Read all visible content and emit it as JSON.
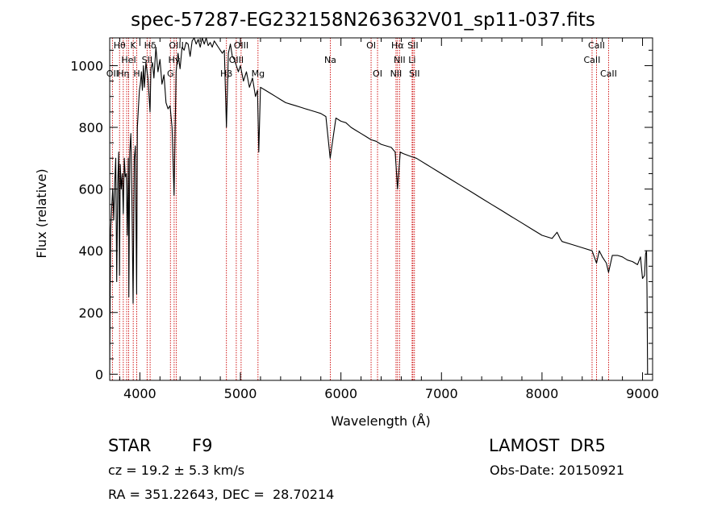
{
  "figure": {
    "title": "spec-57287-EG232158N263632V01_sp11-037.fits",
    "object_class": "STAR",
    "subclass": "F9",
    "survey": "LAMOST  DR5",
    "redshift_text": "cz = 19.2 ± 5.3 km/s",
    "obs_date_text": "Obs-Date: 20150921",
    "coords_text": "RA = 351.22643, DEC =  28.70214"
  },
  "colors": {
    "spectrum": "#000000",
    "line_markers": "#cc0000",
    "axes": "#000000"
  },
  "chart_data": {
    "type": "line",
    "title": "spec-57287-EG232158N263632V01_sp11-037.fits",
    "xlabel": "Wavelength (Å)",
    "ylabel": "Flux (relative)",
    "xlim": [
      3700,
      9100
    ],
    "ylim": [
      -20,
      1090
    ],
    "xticks": [
      4000,
      5000,
      6000,
      7000,
      8000,
      9000
    ],
    "yticks": [
      0,
      200,
      400,
      600,
      800,
      1000
    ],
    "grid": false,
    "series": [
      {
        "x": [
          3700,
          3705,
          3710,
          3720,
          3730,
          3740,
          3750,
          3760,
          3770,
          3780,
          3790,
          3798,
          3805,
          3815,
          3825,
          3835,
          3845,
          3855,
          3865,
          3875,
          3885,
          3890,
          3900,
          3910,
          3920,
          3933,
          3945,
          3955,
          3968,
          3975,
          3985,
          3995,
          4005,
          4015,
          4025,
          4035,
          4045,
          4060,
          4080,
          4101,
          4110,
          4125,
          4140,
          4160,
          4180,
          4200,
          4220,
          4240,
          4260,
          4280,
          4300,
          4320,
          4340,
          4360,
          4380,
          4400,
          4420,
          4440,
          4460,
          4480,
          4500,
          4520,
          4540,
          4560,
          4580,
          4600,
          4620,
          4640,
          4660,
          4680,
          4700,
          4720,
          4740,
          4760,
          4780,
          4800,
          4820,
          4840,
          4861,
          4880,
          4900,
          4920,
          4940,
          4960,
          4980,
          5000,
          5030,
          5060,
          5090,
          5120,
          5150,
          5170,
          5183,
          5200,
          5250,
          5300,
          5350,
          5400,
          5450,
          5500,
          5550,
          5600,
          5650,
          5700,
          5750,
          5800,
          5850,
          5893,
          5950,
          6000,
          6050,
          6100,
          6150,
          6200,
          6250,
          6300,
          6350,
          6400,
          6450,
          6500,
          6540,
          6563,
          6590,
          6620,
          6660,
          6700,
          6750,
          6800,
          6850,
          6900,
          6950,
          7000,
          7100,
          7200,
          7300,
          7400,
          7500,
          7600,
          7700,
          7800,
          7900,
          8000,
          8100,
          8150,
          8180,
          8200,
          8300,
          8400,
          8498,
          8520,
          8542,
          8570,
          8600,
          8640,
          8662,
          8700,
          8750,
          8800,
          8850,
          8900,
          8950,
          8980,
          9000,
          9020,
          9030,
          9040,
          9045,
          9050
        ],
        "y": [
          0,
          280,
          470,
          540,
          600,
          500,
          620,
          700,
          300,
          620,
          720,
          320,
          680,
          600,
          650,
          520,
          700,
          640,
          650,
          450,
          700,
          250,
          720,
          780,
          600,
          230,
          700,
          740,
          260,
          800,
          860,
          920,
          940,
          980,
          920,
          1000,
          930,
          1010,
          960,
          850,
          990,
          1010,
          960,
          1060,
          980,
          1020,
          940,
          970,
          880,
          860,
          870,
          800,
          580,
          980,
          1040,
          990,
          1060,
          1050,
          1075,
          1070,
          1030,
          1080,
          1100,
          1070,
          1085,
          1060,
          1100,
          1070,
          1090,
          1065,
          1075,
          1060,
          1080,
          1070,
          1060,
          1050,
          1040,
          1050,
          800,
          1040,
          1070,
          1030,
          1020,
          1000,
          980,
          1000,
          950,
          980,
          930,
          960,
          900,
          920,
          720,
          930,
          920,
          910,
          900,
          890,
          880,
          875,
          870,
          865,
          860,
          855,
          850,
          845,
          835,
          700,
          830,
          820,
          815,
          800,
          790,
          780,
          770,
          760,
          755,
          745,
          740,
          735,
          720,
          600,
          720,
          715,
          710,
          705,
          700,
          690,
          680,
          670,
          660,
          650,
          630,
          610,
          590,
          570,
          550,
          530,
          510,
          490,
          470,
          450,
          440,
          460,
          440,
          430,
          420,
          410,
          400,
          380,
          360,
          400,
          380,
          360,
          330,
          385,
          385,
          380,
          370,
          365,
          355,
          380,
          310,
          320,
          390,
          400,
          260,
          0
        ]
      }
    ],
    "line_markers": [
      {
        "wavelength": 3727,
        "label": "OII",
        "row": 2
      },
      {
        "wavelength": 3798,
        "label": "Hθ",
        "row": 0
      },
      {
        "wavelength": 3835,
        "label": "Hη",
        "row": 2
      },
      {
        "wavelength": 3869,
        "label": "",
        "row": 1
      },
      {
        "wavelength": 3889,
        "label": "HeI",
        "row": 1
      },
      {
        "wavelength": 3934,
        "label": "K",
        "row": 0
      },
      {
        "wavelength": 3969,
        "label": "H",
        "row": 2
      },
      {
        "wavelength": 4072,
        "label": "SII",
        "row": 1
      },
      {
        "wavelength": 4102,
        "label": "Hδ",
        "row": 0
      },
      {
        "wavelength": 4304,
        "label": "G",
        "row": 2
      },
      {
        "wavelength": 4341,
        "label": "Hγ",
        "row": 1
      },
      {
        "wavelength": 4363,
        "label": "OIII",
        "row": 0
      },
      {
        "wavelength": 4861,
        "label": "Hβ",
        "row": 2
      },
      {
        "wavelength": 4959,
        "label": "OIII",
        "row": 1
      },
      {
        "wavelength": 5007,
        "label": "OIII",
        "row": 0
      },
      {
        "wavelength": 5175,
        "label": "Mg",
        "row": 2
      },
      {
        "wavelength": 5894,
        "label": "Na",
        "row": 1
      },
      {
        "wavelength": 6300,
        "label": "OI",
        "row": 0
      },
      {
        "wavelength": 6364,
        "label": "OI",
        "row": 2
      },
      {
        "wavelength": 6548,
        "label": "NII",
        "row": 2
      },
      {
        "wavelength": 6563,
        "label": "Hα",
        "row": 0
      },
      {
        "wavelength": 6583,
        "label": "NII",
        "row": 1
      },
      {
        "wavelength": 6708,
        "label": "Li",
        "row": 1
      },
      {
        "wavelength": 6716,
        "label": "SII",
        "row": 0
      },
      {
        "wavelength": 6731,
        "label": "SII",
        "row": 2
      },
      {
        "wavelength": 8498,
        "label": "CaII",
        "row": 1
      },
      {
        "wavelength": 8542,
        "label": "CaII",
        "row": 0
      },
      {
        "wavelength": 8662,
        "label": "CaII",
        "row": 2
      }
    ]
  }
}
